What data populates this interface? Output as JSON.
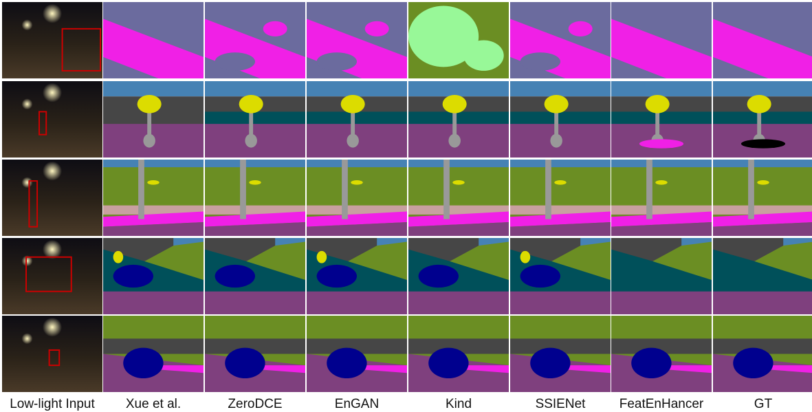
{
  "columns": [
    "Low-light Input",
    "Xue et al.",
    "ZeroDCE",
    "EnGAN",
    "Kind",
    "SSIENet",
    "FeatEnHancer",
    "GT"
  ]
}
